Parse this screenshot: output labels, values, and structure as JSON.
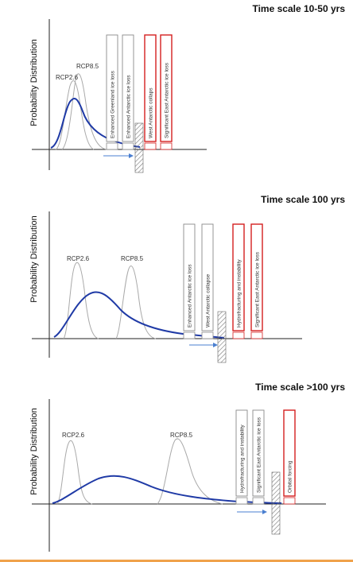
{
  "panels": [
    {
      "title": "Time scale 10-50 yrs",
      "ylabel": "Probability Distribution",
      "curve_labels": [
        "RCP2.6",
        "RCP8.5"
      ],
      "boxes": [
        {
          "label": "Enhanced Greenland ice loss",
          "color": "#8a8a8a"
        },
        {
          "label": "Enhanced Antarctic ice loss",
          "color": "#8a8a8a"
        },
        {
          "label": "West Antarctic collaps",
          "color": "#d42020"
        },
        {
          "label": "Significant East Antarctic ice loss",
          "color": "#d42020"
        }
      ]
    },
    {
      "title": "Time scale 100 yrs",
      "ylabel": "Probability Distribution",
      "curve_labels": [
        "RCP2.6",
        "RCP8.5"
      ],
      "boxes": [
        {
          "label": "Enhanced Antarctic ice loss",
          "color": "#8a8a8a"
        },
        {
          "label": "West Antarctic collapse",
          "color": "#8a8a8a"
        },
        {
          "label": "Hydrofracturing and instability",
          "color": "#d42020"
        },
        {
          "label": "Significant East Antarctic ice loss",
          "color": "#d42020"
        }
      ]
    },
    {
      "title": "Time scale >100 yrs",
      "ylabel": "Probability Distribution",
      "curve_labels": [
        "RCP2.6",
        "RCP8.5"
      ],
      "boxes": [
        {
          "label": "Hydrofracturing and instability",
          "color": "#8a8a8a"
        },
        {
          "label": "Significant East Antarctic ice loss",
          "color": "#8a8a8a"
        },
        {
          "label": "Orbital forcing",
          "color": "#d42020"
        }
      ]
    }
  ],
  "colors": {
    "main_curve": "#1f3aa6",
    "rcp_curves": "#a9a9a9",
    "arrow": "#4a7fd0",
    "hatch": "#777777",
    "bottom_rule": "#f0a24b"
  }
}
